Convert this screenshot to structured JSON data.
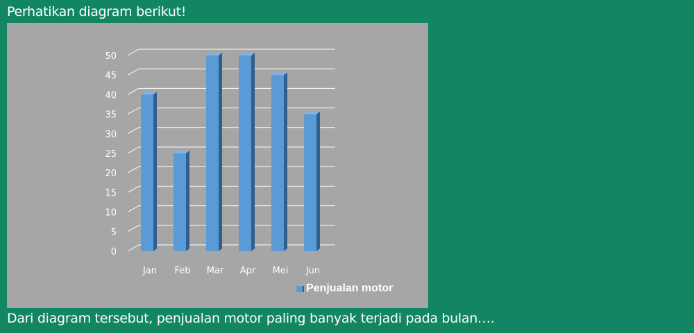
{
  "question": {
    "title": "Perhatikan diagram berikut!",
    "text": "Dari diagram tersebut, penjualan motor paling banyak terjadi pada bulan…."
  },
  "colors": {
    "background": "#128563",
    "plot_area": "#a6a6a6",
    "bar_front": "#5b9bd5",
    "bar_side": "#2e5f8f",
    "bar_top": "#7fb2e5",
    "text": "#ffffff"
  },
  "chart_data": {
    "type": "bar",
    "categories": [
      "Jan",
      "Feb",
      "Mar",
      "Apr",
      "Mei",
      "Jun"
    ],
    "series": [
      {
        "name": "Penjualan motor",
        "values": [
          40,
          25,
          50,
          50,
          45,
          35
        ]
      }
    ],
    "ylim": [
      0,
      50
    ],
    "yticks": [
      0,
      5,
      10,
      15,
      20,
      25,
      30,
      35,
      40,
      45,
      50
    ],
    "grid": true,
    "legend_position": "bottom-right",
    "style": "3d-column"
  }
}
